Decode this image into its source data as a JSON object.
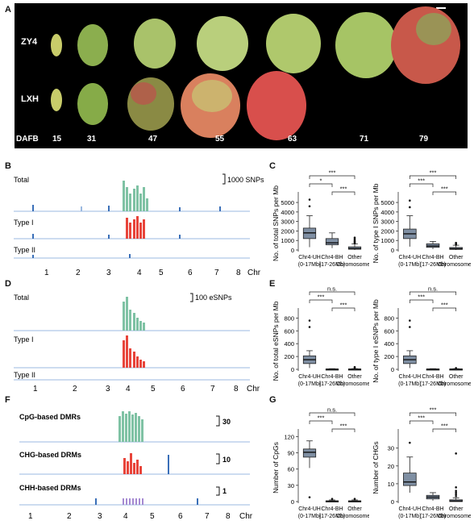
{
  "panelA": {
    "letter": "A",
    "rows": [
      "ZY4",
      "LXH"
    ],
    "axis_label": "DAFB",
    "stages": [
      "15",
      "31",
      "47",
      "55",
      "63",
      "71",
      "79"
    ]
  },
  "panelB": {
    "letter": "B",
    "tracks": [
      "Total",
      "Type I",
      "Type II"
    ],
    "scale": "1000 SNPs",
    "chromosomes": [
      "1",
      "2",
      "3",
      "4",
      "5",
      "6",
      "7",
      "8"
    ],
    "xlabel": "Chr"
  },
  "panelD": {
    "letter": "D",
    "tracks": [
      "Total",
      "Type I",
      "Type II"
    ],
    "scale": "100 eSNPs",
    "chromosomes": [
      "1",
      "2",
      "3",
      "4",
      "5",
      "6",
      "7",
      "8"
    ],
    "xlabel": "Chr"
  },
  "panelF": {
    "letter": "F",
    "tracks": [
      "CpG-based DMRs",
      "CHG-based DRMs",
      "CHH-based DRMs"
    ],
    "scales": [
      "30",
      "10",
      "1"
    ],
    "chromosomes": [
      "1",
      "2",
      "3",
      "4",
      "5",
      "6",
      "7",
      "8"
    ],
    "xlabel": "Chr"
  },
  "groups": [
    {
      "line1": "Chr4-UH",
      "line2": "(0-17Mb)"
    },
    {
      "line1": "Chr4-BH",
      "line2": "(17-26Mb)"
    },
    {
      "line1": "Other",
      "line2": "Chromosomes"
    }
  ],
  "chart_data": [
    {
      "panel": "C",
      "type": "box",
      "ylabel": "No. of total SNPs per Mb",
      "yticks": [
        0,
        1000,
        2000,
        3000,
        4000,
        5000
      ],
      "ylim": [
        0,
        5600
      ],
      "boxes": [
        {
          "q1": 1200,
          "med": 1800,
          "q3": 2300,
          "lo": 300,
          "hi": 3600,
          "outliers": [
            4600,
            5300
          ]
        },
        {
          "q1": 550,
          "med": 750,
          "q3": 1200,
          "lo": 200,
          "hi": 1800,
          "outliers": []
        },
        {
          "q1": 80,
          "med": 150,
          "q3": 330,
          "lo": 0,
          "hi": 650,
          "outliers": [
            700,
            800,
            900,
            1000,
            1150,
            1300
          ]
        }
      ],
      "sig": [
        "*",
        "***",
        "***"
      ]
    },
    {
      "panel": "C2",
      "type": "box",
      "ylabel": "No. of type I SNPs per Mb",
      "yticks": [
        0,
        1000,
        2000,
        3000,
        4000,
        5000
      ],
      "ylim": [
        0,
        5600
      ],
      "boxes": [
        {
          "q1": 1200,
          "med": 1700,
          "q3": 2200,
          "lo": 350,
          "hi": 3600,
          "outliers": [
            4500,
            5200
          ]
        },
        {
          "q1": 280,
          "med": 420,
          "q3": 650,
          "lo": 100,
          "hi": 900,
          "outliers": []
        },
        {
          "q1": 60,
          "med": 130,
          "q3": 260,
          "lo": 0,
          "hi": 500,
          "outliers": [
            550,
            650,
            750
          ]
        }
      ],
      "sig": [
        "***",
        "***",
        "***"
      ]
    },
    {
      "panel": "E",
      "type": "box",
      "ylabel": "No. of total eSNPs per Mb",
      "yticks": [
        0,
        200,
        400,
        600,
        800
      ],
      "ylim": [
        0,
        880
      ],
      "boxes": [
        {
          "q1": 90,
          "med": 150,
          "q3": 210,
          "lo": 20,
          "hi": 290,
          "outliers": [
            660,
            760
          ]
        },
        {
          "q1": 0,
          "med": 2,
          "q3": 6,
          "lo": 0,
          "hi": 10,
          "outliers": []
        },
        {
          "q1": 0,
          "med": 2,
          "q3": 6,
          "lo": 0,
          "hi": 10,
          "outliers": [
            20,
            35
          ]
        }
      ],
      "sig": [
        "***",
        "***",
        "n.s."
      ]
    },
    {
      "panel": "E2",
      "type": "box",
      "ylabel": "No. of type I eSNPs per Mb",
      "yticks": [
        0,
        200,
        400,
        600,
        800
      ],
      "ylim": [
        0,
        880
      ],
      "boxes": [
        {
          "q1": 90,
          "med": 150,
          "q3": 210,
          "lo": 20,
          "hi": 290,
          "outliers": [
            660,
            760
          ]
        },
        {
          "q1": 0,
          "med": 2,
          "q3": 6,
          "lo": 0,
          "hi": 10,
          "outliers": []
        },
        {
          "q1": 0,
          "med": 2,
          "q3": 6,
          "lo": 0,
          "hi": 10,
          "outliers": [
            20
          ]
        }
      ],
      "sig": [
        "***",
        "***",
        "n.s."
      ]
    },
    {
      "panel": "G",
      "type": "box",
      "ylabel": "Number of CpGs",
      "yticks": [
        0,
        30,
        60,
        90,
        120
      ],
      "ylim": [
        0,
        125
      ],
      "boxes": [
        {
          "q1": 82,
          "med": 91,
          "q3": 97,
          "lo": 62,
          "hi": 112,
          "outliers": [
            8
          ]
        },
        {
          "q1": 0,
          "med": 0.5,
          "q3": 1.5,
          "lo": 0,
          "hi": 3,
          "outliers": [
            5
          ]
        },
        {
          "q1": 0,
          "med": 0.5,
          "q3": 1.5,
          "lo": 0,
          "hi": 3,
          "outliers": [
            5
          ]
        }
      ],
      "sig": [
        "***",
        "***",
        "n.s."
      ]
    },
    {
      "panel": "G2",
      "type": "box",
      "ylabel": "Number of CHGs",
      "yticks": [
        0,
        10,
        20,
        30
      ],
      "ylim": [
        0,
        38
      ],
      "boxes": [
        {
          "q1": 9,
          "med": 11,
          "q3": 16,
          "lo": 5,
          "hi": 25,
          "outliers": [
            33
          ]
        },
        {
          "q1": 1.5,
          "med": 2.5,
          "q3": 3.5,
          "lo": 0.5,
          "hi": 5,
          "outliers": []
        },
        {
          "q1": 0,
          "med": 0.3,
          "q3": 1,
          "lo": 0,
          "hi": 2,
          "outliers": [
            3,
            4,
            5,
            6,
            8,
            27
          ]
        }
      ],
      "sig": [
        "***",
        "***",
        "***"
      ]
    }
  ]
}
